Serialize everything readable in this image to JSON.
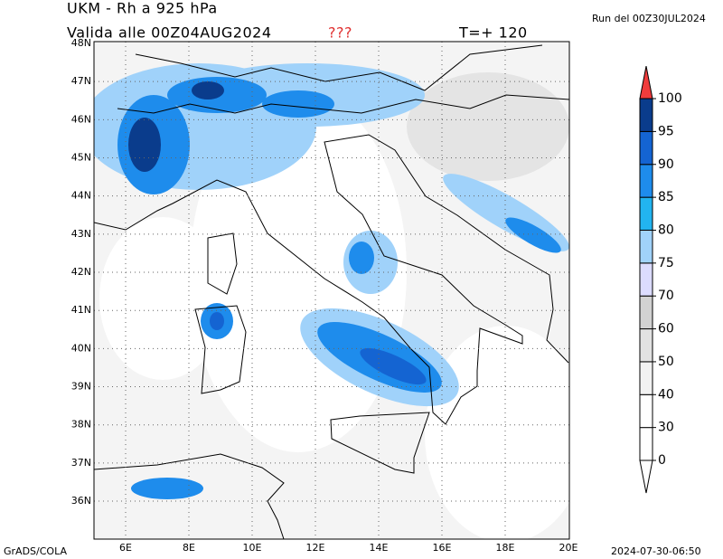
{
  "header": {
    "title": "UKM - Rh a 925 hPa",
    "valid": "Valida alle 00Z04AUG2024",
    "flag": "???",
    "lead": "T=+ 120",
    "run": "Run del 00Z30JUL2024"
  },
  "map": {
    "lat_labels": [
      "48N",
      "47N",
      "46N",
      "45N",
      "44N",
      "43N",
      "42N",
      "41N",
      "40N",
      "39N",
      "38N",
      "37N",
      "36N"
    ],
    "lon_labels": [
      "6E",
      "8E",
      "10E",
      "12E",
      "14E",
      "16E",
      "18E",
      "20E"
    ]
  },
  "colorbar": {
    "labels": [
      0,
      30,
      40,
      50,
      60,
      70,
      75,
      80,
      85,
      90,
      95,
      100
    ],
    "colors": [
      "#ffffff",
      "#ffffff",
      "#f2f2f2",
      "#e2e2e2",
      "#d2d2d2",
      "#dcdcff",
      "#a0d2fa",
      "#22b4f0",
      "#1e8cec",
      "#1464d2",
      "#0a3c8c"
    ],
    "below_color": "#ffffff",
    "above_color": "#f03c3c"
  },
  "footer": {
    "left": "GrADS/COLA",
    "right": "2024-07-30-06:50"
  }
}
